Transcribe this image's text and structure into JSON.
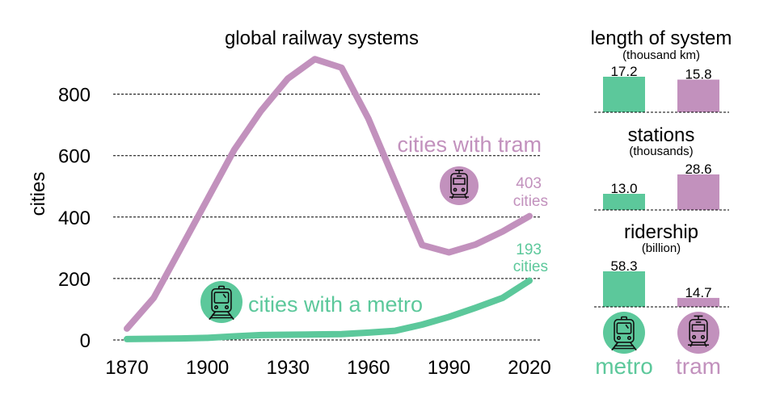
{
  "colors": {
    "metro": "#5cc89b",
    "tram": "#c291bd",
    "text": "#000000",
    "grid": "#000000"
  },
  "chart_data": [
    {
      "type": "line",
      "title": "global railway systems",
      "ylabel": "cities",
      "xlabel": "",
      "xlim": [
        1870,
        2020
      ],
      "ylim": [
        0,
        900
      ],
      "xticks": [
        "1870",
        "1900",
        "1930",
        "1960",
        "1990",
        "2020"
      ],
      "yticks": [
        "0",
        "200",
        "400",
        "600",
        "800"
      ],
      "grid": "horizontal dashed",
      "x": [
        1870,
        1880,
        1890,
        1900,
        1910,
        1920,
        1930,
        1940,
        1950,
        1960,
        1970,
        1980,
        1990,
        2000,
        2010,
        2020
      ],
      "series": [
        {
          "name": "cities with tram",
          "key": "tram",
          "icon": "tram-icon",
          "values": [
            37,
            137,
            297,
            458,
            619,
            746,
            851,
            914,
            886,
            720,
            514,
            309,
            285,
            311,
            353,
            403
          ],
          "end_label": [
            "403",
            "cities"
          ]
        },
        {
          "name": "cities with a metro",
          "key": "metro",
          "icon": "metro-train-icon",
          "values": [
            3,
            4,
            5,
            7,
            12,
            16,
            17,
            18,
            19,
            24,
            30,
            50,
            75,
            105,
            137,
            193
          ],
          "end_label": [
            "193",
            "cities"
          ]
        }
      ]
    },
    {
      "type": "bar",
      "title": "length of system",
      "subtitle": "(thousand km)",
      "categories": [
        "metro",
        "tram"
      ],
      "values": [
        17.2,
        15.8
      ],
      "labels": [
        "17.2",
        "15.8"
      ]
    },
    {
      "type": "bar",
      "title": "stations",
      "subtitle": "(thousands)",
      "categories": [
        "metro",
        "tram"
      ],
      "values": [
        13.0,
        28.6
      ],
      "labels": [
        "13.0",
        "28.6"
      ]
    },
    {
      "type": "bar",
      "title": "ridership",
      "subtitle": "(billion)",
      "categories": [
        "metro",
        "tram"
      ],
      "values": [
        58.3,
        14.7
      ],
      "labels": [
        "58.3",
        "14.7"
      ]
    }
  ],
  "legend": [
    {
      "label": "metro",
      "icon": "metro-train-icon"
    },
    {
      "label": "tram",
      "icon": "tram-icon"
    }
  ]
}
